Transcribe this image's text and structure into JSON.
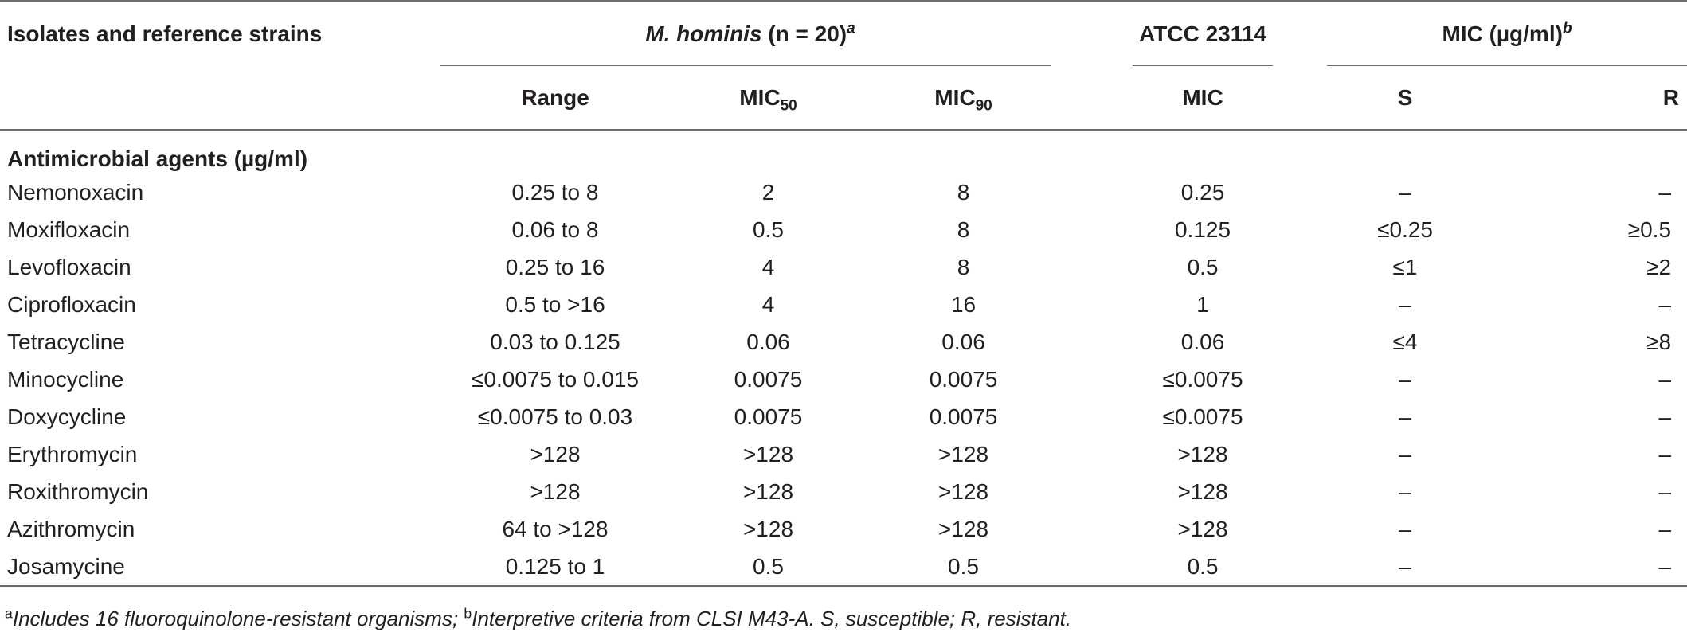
{
  "header": {
    "row_label": "Isolates and reference strains",
    "group_mh": {
      "name": "M. hominis",
      "rest": " (n = 20)",
      "sup": "a"
    },
    "group_atcc": "ATCC 23114",
    "group_mic": {
      "text": "MIC (µg/ml)",
      "sup": "b"
    },
    "cols": {
      "range": "Range",
      "mic50_base": "MIC",
      "mic50_sub": "50",
      "mic90_base": "MIC",
      "mic90_sub": "90",
      "atcc_mic": "MIC",
      "s": "S",
      "r": "R"
    }
  },
  "section_label": "Antimicrobial agents (µg/ml)",
  "rows": [
    {
      "agent": "Nemonoxacin",
      "range": "0.25 to 8",
      "mic50": "2",
      "mic90": "8",
      "atcc": "0.25",
      "s": "–",
      "r": "–"
    },
    {
      "agent": "Moxifloxacin",
      "range": "0.06 to 8",
      "mic50": "0.5",
      "mic90": "8",
      "atcc": "0.125",
      "s": "≤0.25",
      "r": "≥0.5"
    },
    {
      "agent": "Levofloxacin",
      "range": "0.25 to 16",
      "mic50": "4",
      "mic90": "8",
      "atcc": "0.5",
      "s": "≤1",
      "r": "≥2"
    },
    {
      "agent": "Ciprofloxacin",
      "range": "0.5 to >16",
      "mic50": "4",
      "mic90": "16",
      "atcc": "1",
      "s": "–",
      "r": "–"
    },
    {
      "agent": "Tetracycline",
      "range": "0.03 to 0.125",
      "mic50": "0.06",
      "mic90": "0.06",
      "atcc": "0.06",
      "s": "≤4",
      "r": "≥8"
    },
    {
      "agent": "Minocycline",
      "range": "≤0.0075 to 0.015",
      "mic50": "0.0075",
      "mic90": "0.0075",
      "atcc": "≤0.0075",
      "s": "–",
      "r": "–"
    },
    {
      "agent": "Doxycycline",
      "range": "≤0.0075 to 0.03",
      "mic50": "0.0075",
      "mic90": "0.0075",
      "atcc": "≤0.0075",
      "s": "–",
      "r": "–"
    },
    {
      "agent": "Erythromycin",
      "range": ">128",
      "mic50": ">128",
      "mic90": ">128",
      "atcc": ">128",
      "s": "–",
      "r": "–"
    },
    {
      "agent": "Roxithromycin",
      "range": ">128",
      "mic50": ">128",
      "mic90": ">128",
      "atcc": ">128",
      "s": "–",
      "r": "–"
    },
    {
      "agent": "Azithromycin",
      "range": "64 to >128",
      "mic50": ">128",
      "mic90": ">128",
      "atcc": ">128",
      "s": "–",
      "r": "–"
    },
    {
      "agent": "Josamycine",
      "range": "0.125 to 1",
      "mic50": "0.5",
      "mic90": "0.5",
      "atcc": "0.5",
      "s": "–",
      "r": "–"
    }
  ],
  "footnote": {
    "a_mark": "a",
    "a_text": "Includes 16 fluoroquinolone-resistant organisms; ",
    "b_mark": "b",
    "b_text": "Interpretive criteria from CLSI M43-A. S, susceptible; R, resistant."
  }
}
